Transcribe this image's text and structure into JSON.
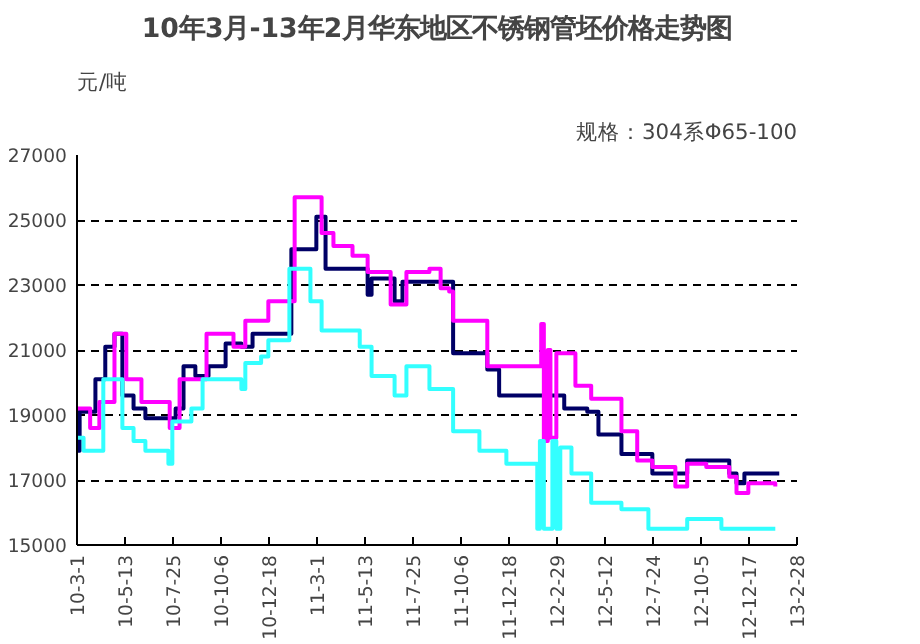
{
  "chart_data": {
    "type": "step",
    "title": "10年3月-13年2月华东地区不锈钢管坯价格走势图",
    "ylabel": "元/吨",
    "annotations": [
      "规格：304系Φ65-100"
    ],
    "xlim": [
      "2010-03-01",
      "2013-02-28"
    ],
    "xticks": [
      {
        "value": "2010-03-01",
        "label": "10-3-1"
      },
      {
        "value": "2010-05-13",
        "label": "10-5-13"
      },
      {
        "value": "2010-07-25",
        "label": "10-7-25"
      },
      {
        "value": "2010-10-06",
        "label": "10-10-6"
      },
      {
        "value": "2010-12-18",
        "label": "10-12-18"
      },
      {
        "value": "2011-03-01",
        "label": "11-3-1"
      },
      {
        "value": "2011-05-13",
        "label": "11-5-13"
      },
      {
        "value": "2011-07-25",
        "label": "11-7-25"
      },
      {
        "value": "2011-10-06",
        "label": "11-10-6"
      },
      {
        "value": "2011-12-18",
        "label": "11-12-18"
      },
      {
        "value": "2012-02-29",
        "label": "12-2-29"
      },
      {
        "value": "2012-05-12",
        "label": "12-5-12"
      },
      {
        "value": "2012-07-24",
        "label": "12-7-24"
      },
      {
        "value": "2012-10-05",
        "label": "12-10-5"
      },
      {
        "value": "2012-12-17",
        "label": "12-12-17"
      },
      {
        "value": "2013-02-28",
        "label": "13-2-28"
      }
    ],
    "ylim": [
      15000,
      27000
    ],
    "yticks": [
      15000,
      17000,
      19000,
      21000,
      23000,
      25000,
      27000
    ],
    "grid": "y",
    "line_style": "solid",
    "marker": "none",
    "series": [
      {
        "color": "#000066",
        "x": [
          "2010-03-01",
          "2010-03-05",
          "2010-03-29",
          "2010-04-13",
          "2010-04-27",
          "2010-05-09",
          "2010-05-26",
          "2010-06-13",
          "2010-07-29",
          "2010-08-10",
          "2010-08-28",
          "2010-09-17",
          "2010-10-13",
          "2010-11-06",
          "2010-11-23",
          "2011-01-21",
          "2011-02-28",
          "2011-03-14",
          "2011-05-17",
          "2011-05-23",
          "2011-06-27",
          "2011-07-09",
          "2011-08-08",
          "2011-09-24",
          "2011-11-15",
          "2011-12-03",
          "2012-03-11",
          "2012-04-15",
          "2012-05-02",
          "2012-06-06",
          "2012-07-23",
          "2012-09-14",
          "2012-11-17",
          "2012-11-28",
          "2012-12-10",
          "2013-02-01"
        ],
        "values": [
          17900,
          19100,
          20100,
          21100,
          21500,
          19600,
          19200,
          18900,
          19200,
          20500,
          20200,
          20500,
          21200,
          21100,
          21500,
          24100,
          25100,
          23500,
          22700,
          23200,
          22500,
          23100,
          23100,
          20900,
          20400,
          19600,
          19200,
          19100,
          18400,
          17800,
          17200,
          17600,
          17200,
          16900,
          17200,
          17200
        ]
      },
      {
        "color": "#ff00ff",
        "x": [
          "2010-03-01",
          "2010-03-21",
          "2010-04-04",
          "2010-04-27",
          "2010-05-15",
          "2010-06-07",
          "2010-07-20",
          "2010-08-04",
          "2010-09-14",
          "2010-10-25",
          "2010-11-12",
          "2010-12-17",
          "2011-01-26",
          "2011-03-08",
          "2011-03-26",
          "2011-04-24",
          "2011-05-17",
          "2011-06-21",
          "2011-07-15",
          "2011-08-19",
          "2011-09-05",
          "2011-09-18",
          "2011-09-24",
          "2011-11-15",
          "2012-02-05",
          "2012-02-09",
          "2012-02-15",
          "2012-02-19",
          "2012-02-28",
          "2012-03-28",
          "2012-04-21",
          "2012-06-06",
          "2012-06-30",
          "2012-07-23",
          "2012-08-27",
          "2012-09-14",
          "2012-10-13",
          "2012-11-17",
          "2012-11-28",
          "2012-12-16",
          "2013-01-26"
        ],
        "values": [
          19200,
          18600,
          19400,
          21500,
          20100,
          19400,
          18600,
          20100,
          21500,
          21100,
          21900,
          22500,
          25700,
          24600,
          24200,
          23900,
          23400,
          22400,
          23400,
          23500,
          22900,
          22800,
          21900,
          20500,
          21800,
          18200,
          21000,
          18300,
          20900,
          19900,
          19500,
          18500,
          17600,
          17400,
          16800,
          17500,
          17400,
          17100,
          16600,
          16900,
          16800
        ]
      },
      {
        "color": "#33ffff",
        "x": [
          "2010-03-01",
          "2010-03-11",
          "2010-04-10",
          "2010-05-09",
          "2010-05-26",
          "2010-06-13",
          "2010-07-18",
          "2010-07-24",
          "2010-08-22",
          "2010-09-08",
          "2010-11-06",
          "2010-11-12",
          "2010-12-06",
          "2010-12-17",
          "2011-01-18",
          "2011-02-19",
          "2011-03-08",
          "2011-05-05",
          "2011-05-23",
          "2011-06-27",
          "2011-07-15",
          "2011-08-19",
          "2011-09-24",
          "2011-11-03",
          "2011-12-14",
          "2012-01-30",
          "2012-02-03",
          "2012-02-09",
          "2012-02-22",
          "2012-02-28",
          "2012-03-05",
          "2012-03-22",
          "2012-04-21",
          "2012-06-06",
          "2012-07-17",
          "2012-09-14",
          "2012-11-05",
          "2013-01-26"
        ],
        "values": [
          18300,
          17900,
          20100,
          18600,
          18200,
          17900,
          17500,
          18800,
          19200,
          20100,
          19800,
          20600,
          20800,
          21300,
          23500,
          22500,
          21600,
          21100,
          20200,
          19600,
          20500,
          19800,
          18500,
          17900,
          17500,
          15500,
          18200,
          15500,
          18200,
          15500,
          18000,
          17200,
          16300,
          16100,
          15500,
          15800,
          15500,
          15500
        ]
      }
    ]
  }
}
